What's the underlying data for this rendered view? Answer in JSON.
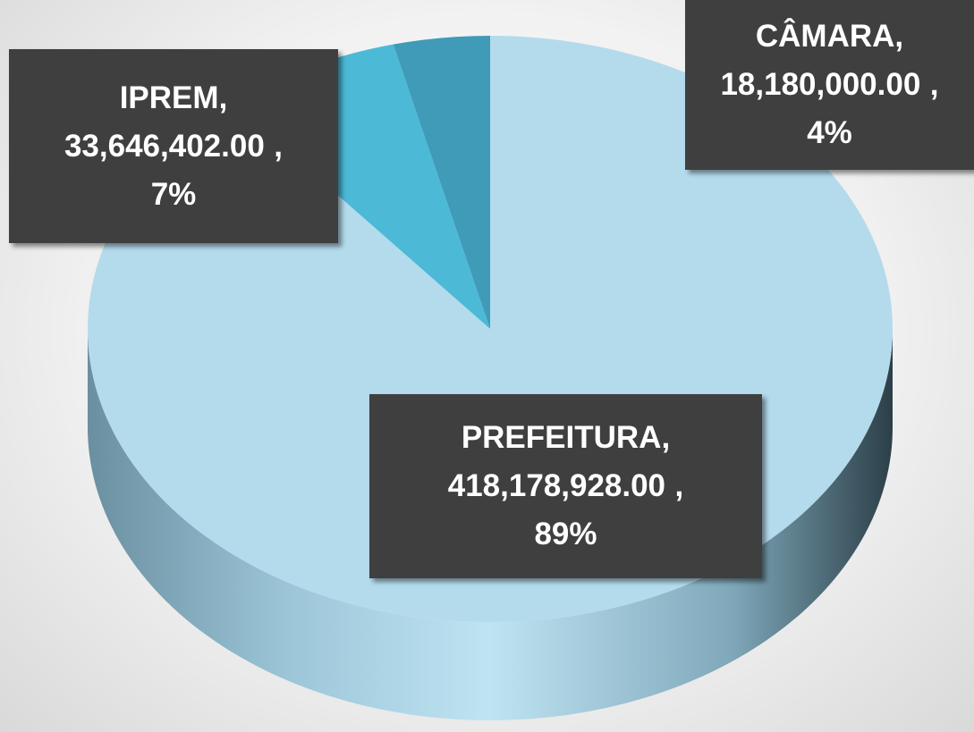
{
  "chart_data": {
    "type": "pie3d",
    "categories": [
      "PREFEITURA",
      "IPREM",
      "CÂMARA"
    ],
    "values": [
      418178928,
      33646402,
      18180000
    ],
    "value_labels": [
      "418,178,928.00",
      "33,646,402.00",
      "18,180,000.00"
    ],
    "percent_labels": [
      "89%",
      "7%",
      "4%"
    ],
    "label_separator": ",",
    "colors": [
      "#b4dbec",
      "#4cb9d7",
      "#3f9bb7"
    ]
  }
}
